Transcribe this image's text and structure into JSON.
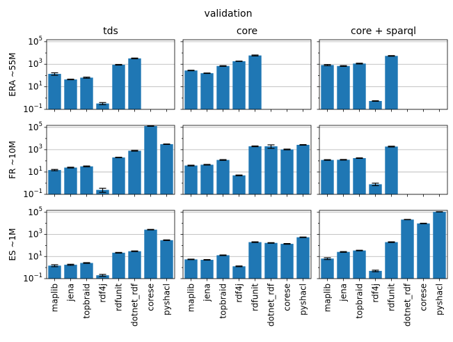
{
  "suptitle": "validation",
  "chart_data": {
    "type": "bar",
    "yscale": "log",
    "ylim": [
      0.1,
      150000
    ],
    "yticks": [
      {
        "value": 0.1,
        "base": "10",
        "exp": "−1"
      },
      {
        "value": 10,
        "base": "10",
        "exp": "1"
      },
      {
        "value": 1000,
        "base": "10",
        "exp": "3"
      },
      {
        "value": 100000,
        "base": "10",
        "exp": "5"
      }
    ],
    "grid": "horizontal",
    "categories": [
      "maplib",
      "jena",
      "topbraid",
      "rdf4j",
      "rdfunit",
      "dotnet_rdf",
      "corese",
      "pyshacl"
    ],
    "columns": [
      "tds",
      "core",
      "core + sparql"
    ],
    "rows": [
      "ERA ~55M",
      "FR ~10M",
      "ES ~1M"
    ],
    "color": "#1f77b4",
    "panels": [
      [
        {
          "values": [
            140,
            45,
            65,
            0.33,
            900,
            3300,
            null,
            null
          ],
          "err": [
            35,
            3,
            7,
            0.07,
            60,
            250,
            null,
            null
          ]
        },
        {
          "values": [
            280,
            160,
            700,
            1850,
            6000,
            null,
            null,
            null
          ],
          "err": [
            15,
            8,
            50,
            60,
            600,
            null,
            null,
            null
          ]
        },
        {
          "values": [
            850,
            700,
            1150,
            0.55,
            5500,
            null,
            null,
            null
          ],
          "err": [
            100,
            60,
            100,
            0.03,
            350,
            null,
            null,
            null
          ]
        }
      ],
      [
        {
          "values": [
            15,
            25,
            32,
            0.25,
            200,
            800,
            130000,
            3100
          ],
          "err": [
            2,
            2,
            3,
            0.1,
            10,
            60,
            6000,
            150
          ]
        },
        {
          "values": [
            38,
            45,
            120,
            5,
            2000,
            2000,
            1050,
            2700
          ],
          "err": [
            3,
            3,
            10,
            0.4,
            150,
            700,
            80,
            150
          ]
        },
        {
          "values": [
            120,
            125,
            175,
            0.8,
            1900,
            null,
            null,
            null
          ],
          "err": [
            8,
            8,
            10,
            0.2,
            150,
            null,
            null,
            null
          ]
        }
      ],
      [
        {
          "values": [
            1.5,
            1.8,
            2.6,
            0.2,
            22,
            30,
            2700,
            300
          ],
          "err": [
            0.3,
            0.2,
            0.2,
            0.04,
            1.5,
            2,
            150,
            20
          ]
        },
        {
          "values": [
            5.5,
            5,
            13,
            1.3,
            200,
            170,
            140,
            550
          ],
          "err": [
            0.3,
            0.3,
            0.8,
            0.1,
            15,
            10,
            10,
            30
          ]
        },
        {
          "values": [
            6.5,
            26,
            35,
            0.5,
            200,
            22000,
            9800,
            110000
          ],
          "err": [
            1.2,
            2,
            2,
            0.08,
            15,
            700,
            500,
            3000
          ]
        }
      ]
    ]
  }
}
